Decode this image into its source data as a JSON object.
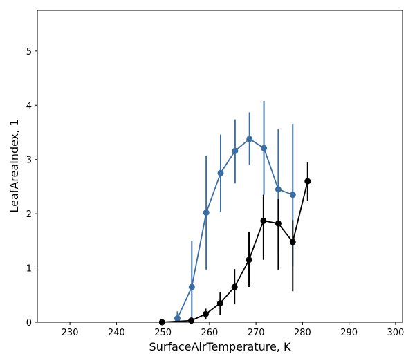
{
  "chart_data": {
    "type": "line",
    "title": "",
    "xlabel": "SurfaceAirTemperature,  K",
    "ylabel": "LeafAreaIndex,  1",
    "xlim": [
      223,
      301.5
    ],
    "ylim": [
      0,
      5.75
    ],
    "xticks": [
      230,
      240,
      250,
      260,
      270,
      280,
      290,
      300
    ],
    "yticks": [
      0,
      1,
      2,
      3,
      4,
      5
    ],
    "grid": false,
    "legend": "none",
    "series": [
      {
        "color": "#3a6ea5",
        "points": [
          {
            "x": 253.1,
            "y": 0.07,
            "lo": 0.0,
            "hi": 0.2
          },
          {
            "x": 256.2,
            "y": 0.65,
            "lo": 0.0,
            "hi": 1.5
          },
          {
            "x": 259.3,
            "y": 2.02,
            "lo": 0.97,
            "hi": 3.07
          },
          {
            "x": 262.4,
            "y": 2.75,
            "lo": 2.04,
            "hi": 3.46
          },
          {
            "x": 265.5,
            "y": 3.16,
            "lo": 2.56,
            "hi": 3.74
          },
          {
            "x": 268.6,
            "y": 3.38,
            "lo": 2.9,
            "hi": 3.87
          },
          {
            "x": 271.7,
            "y": 3.21,
            "lo": 2.35,
            "hi": 4.08
          },
          {
            "x": 274.8,
            "y": 2.45,
            "lo": 1.32,
            "hi": 3.57
          },
          {
            "x": 277.9,
            "y": 2.35,
            "lo": 1.03,
            "hi": 3.66
          }
        ]
      },
      {
        "color": "#000000",
        "points": [
          {
            "x": 249.8,
            "y": 0.0,
            "lo": 0.0,
            "hi": 0.0
          },
          {
            "x": 256.1,
            "y": 0.03,
            "lo": 0.0,
            "hi": 0.08
          },
          {
            "x": 259.2,
            "y": 0.15,
            "lo": 0.05,
            "hi": 0.25
          },
          {
            "x": 262.3,
            "y": 0.35,
            "lo": 0.14,
            "hi": 0.56
          },
          {
            "x": 265.4,
            "y": 0.65,
            "lo": 0.33,
            "hi": 0.98
          },
          {
            "x": 268.5,
            "y": 1.15,
            "lo": 0.65,
            "hi": 1.66
          },
          {
            "x": 271.6,
            "y": 1.87,
            "lo": 1.15,
            "hi": 2.35
          },
          {
            "x": 274.8,
            "y": 1.82,
            "lo": 0.97,
            "hi": 2.27
          },
          {
            "x": 277.9,
            "y": 1.48,
            "lo": 0.57,
            "hi": 1.88
          },
          {
            "x": 281.1,
            "y": 2.6,
            "lo": 2.24,
            "hi": 2.95
          }
        ]
      }
    ]
  }
}
